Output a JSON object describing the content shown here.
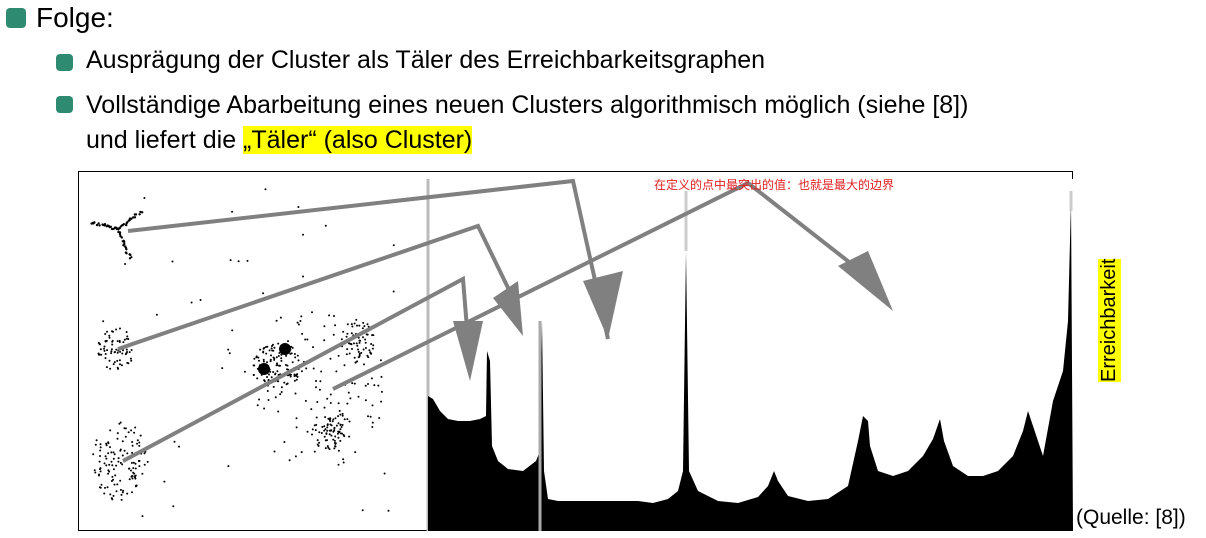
{
  "bullets": [
    {
      "text": "Folge:"
    },
    {
      "text": "Ausprägung der Cluster als Täler des Erreichbarkeitsgraphen"
    },
    {
      "line1": "Vollständige Abarbeitung eines neuen Clusters algorithmisch möglich (siehe [8])",
      "line2_prefix": "und liefert die ",
      "line2_highlight": "„Täler“ (also Cluster)"
    }
  ],
  "figure": {
    "annotation_cn": "在定义的点中最突出的值：也就是最大的边界",
    "y_axis_label": "Erreichbarkeit",
    "source": "(Quelle: [8])"
  },
  "colors": {
    "bullet": "#2e8b72",
    "highlight": "#ffff00",
    "arrow": "#808080",
    "annotation": "#e02020"
  }
}
